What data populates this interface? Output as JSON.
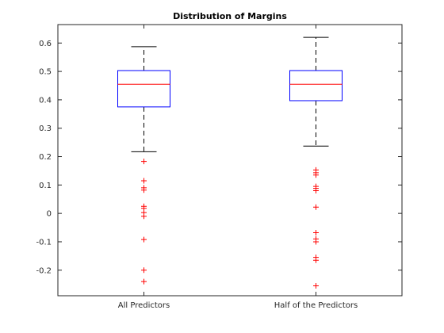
{
  "chart_data": {
    "type": "boxplot",
    "title": "Distribution of Margins",
    "xlabel": "",
    "ylabel": "",
    "categories": [
      "All Predictors",
      "Half of the Predictors"
    ],
    "ylim": [
      -0.29,
      0.665
    ],
    "yticks": [
      -0.2,
      -0.1,
      0,
      0.1,
      0.2,
      0.3,
      0.4,
      0.5,
      0.6
    ],
    "ytick_labels": [
      "-0.2",
      "-0.1",
      "0",
      "0.1",
      "0.2",
      "0.3",
      "0.4",
      "0.5",
      "0.6"
    ],
    "grid": false,
    "box_color": "#0000ff",
    "median_color": "#ff0000",
    "outlier_color": "#ff0000",
    "whisker_color": "#000000",
    "boxes": [
      {
        "name": "All Predictors",
        "whisker_low": 0.217,
        "q1": 0.375,
        "median": 0.455,
        "q3": 0.503,
        "whisker_high": 0.587,
        "outliers": [
          0.183,
          0.115,
          0.09,
          0.082,
          0.025,
          0.018,
          0.003,
          -0.01,
          -0.092,
          -0.2,
          -0.24
        ]
      },
      {
        "name": "Half of the Predictors",
        "whisker_low": 0.237,
        "q1": 0.397,
        "median": 0.455,
        "q3": 0.503,
        "whisker_high": 0.62,
        "outliers": [
          0.153,
          0.143,
          0.135,
          0.095,
          0.088,
          0.08,
          0.022,
          -0.068,
          -0.09,
          -0.1,
          -0.155,
          -0.165,
          -0.255
        ]
      }
    ]
  }
}
